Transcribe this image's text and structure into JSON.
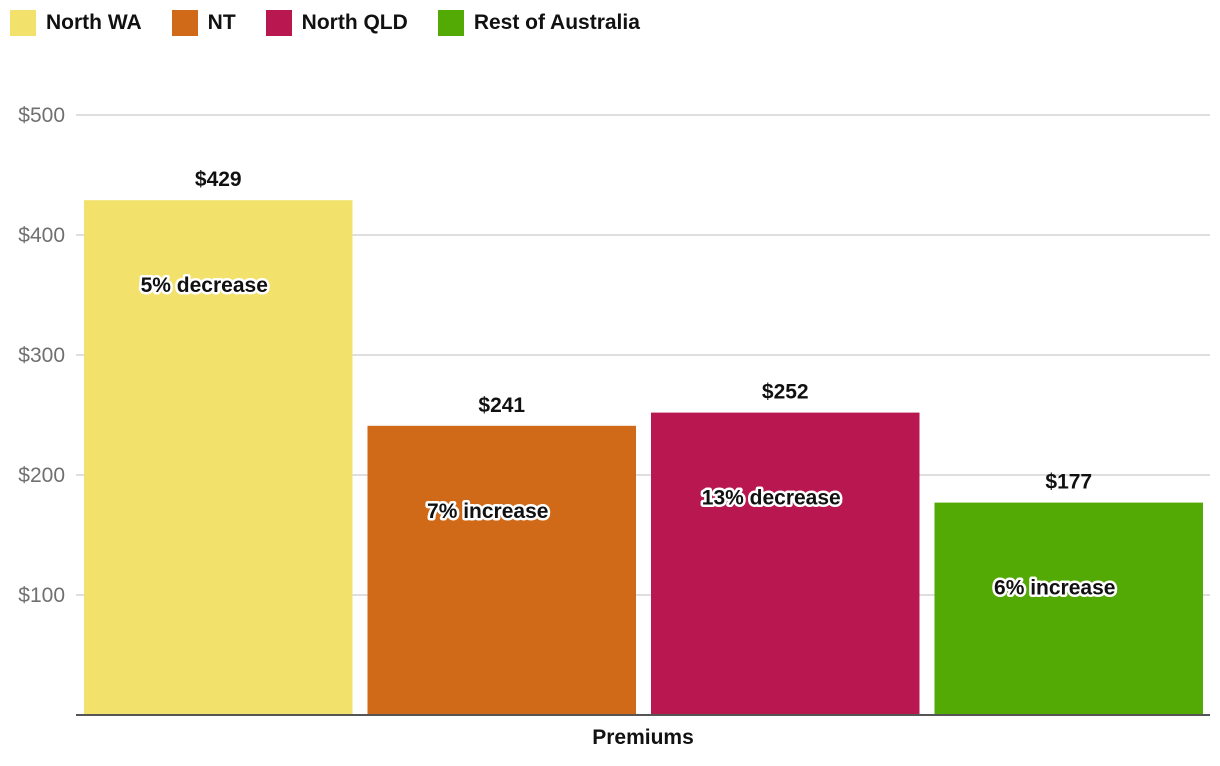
{
  "legend": {
    "items": [
      {
        "label": "North WA",
        "color": "#f2e16a"
      },
      {
        "label": "NT",
        "color": "#d06a18"
      },
      {
        "label": "North QLD",
        "color": "#b8174f"
      },
      {
        "label": "Rest of Australia",
        "color": "#53aa05"
      }
    ]
  },
  "chart_data": {
    "type": "bar",
    "categories": [
      "Premiums"
    ],
    "xlabel": "Premiums",
    "ylabel": "",
    "title": "",
    "ylim": [
      0,
      500
    ],
    "yticks": [
      100,
      200,
      300,
      400,
      500
    ],
    "ytick_labels": [
      "$100",
      "$200",
      "$300",
      "$400",
      "$500"
    ],
    "grid": true,
    "legend_position": "top-left",
    "series": [
      {
        "name": "North WA",
        "color": "#f2e16a",
        "values": [
          429
        ],
        "value_label": "$429",
        "annotation": "5% decrease"
      },
      {
        "name": "NT",
        "color": "#d06a18",
        "values": [
          241
        ],
        "value_label": "$241",
        "annotation": "7% increase"
      },
      {
        "name": "North QLD",
        "color": "#b8174f",
        "values": [
          252
        ],
        "value_label": "$252",
        "annotation": "13% decrease"
      },
      {
        "name": "Rest of Australia",
        "color": "#53aa05",
        "values": [
          177
        ],
        "value_label": "$177",
        "annotation": "6% increase"
      }
    ]
  }
}
